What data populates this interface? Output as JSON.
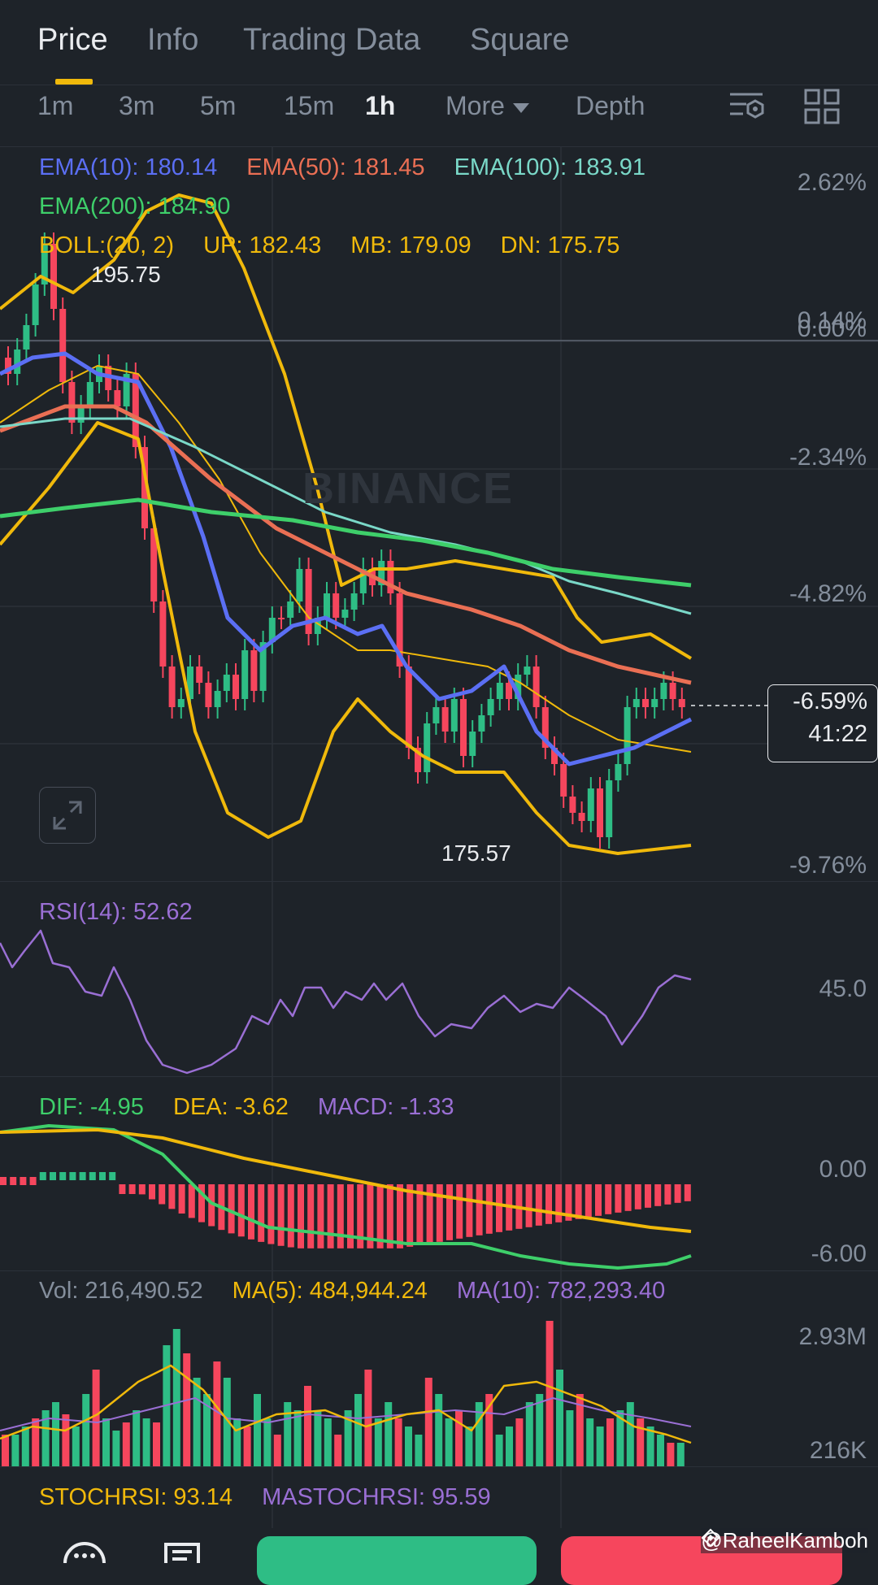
{
  "tabs": [
    {
      "label": "Price",
      "active": true
    },
    {
      "label": "Info",
      "active": false
    },
    {
      "label": "Trading Data",
      "active": false
    },
    {
      "label": "Square",
      "active": false
    }
  ],
  "intervals": [
    {
      "label": "1m"
    },
    {
      "label": "3m"
    },
    {
      "label": "5m"
    },
    {
      "label": "15m"
    },
    {
      "label": "1h",
      "active": true
    },
    {
      "label": "More"
    },
    {
      "label": "Depth"
    }
  ],
  "icons": [
    "chart-settings-icon",
    "grid-layout-icon",
    "expand-icon",
    "binance-logo"
  ],
  "legend": {
    "ema10": "EMA(10): 180.14",
    "ema50": "EMA(50): 181.45",
    "ema100": "EMA(100): 183.91",
    "ema200": "EMA(200): 184.90",
    "boll": "BOLL:(20, 2)",
    "up": "UP: 182.43",
    "mb": "MB: 179.09",
    "dn": "DN: 175.75"
  },
  "price_axis": [
    "2.62%",
    "0.14%",
    "0.00%",
    "-2.34%",
    "-4.82%",
    "-9.76%"
  ],
  "high_marker": "195.75",
  "low_marker": "175.57",
  "current_tag": {
    "change": "-6.59%",
    "countdown": "41:22"
  },
  "watermark": "BINANCE",
  "rsi": {
    "label": "RSI(14): 52.62",
    "axis": "45.0"
  },
  "macd": {
    "dif": "DIF: -4.95",
    "dea": "DEA: -3.62",
    "macd": "MACD: -1.33",
    "axis_top": "0.00",
    "axis_bottom": "-6.00"
  },
  "volume": {
    "vol": "Vol: 216,490.52",
    "ma5": "MA(5): 484,944.24",
    "ma10": "MA(10): 782,293.40",
    "axis_top": "2.93M",
    "axis_bottom": "216K"
  },
  "stochrsi": {
    "stoch": "STOCHRSI: 93.14",
    "mastoch": "MASTOCHRSI: 95.59"
  },
  "credit": "@RaheelKamboh",
  "colors": {
    "up": "#2ebd85",
    "down": "#f6465d",
    "ema10": "#5b6ff4",
    "ema50": "#ea6f54",
    "ema100": "#7ad8c8",
    "ema200": "#3ecf6a",
    "boll": "#f0b90b",
    "rsi": "#9a6fd4"
  }
}
